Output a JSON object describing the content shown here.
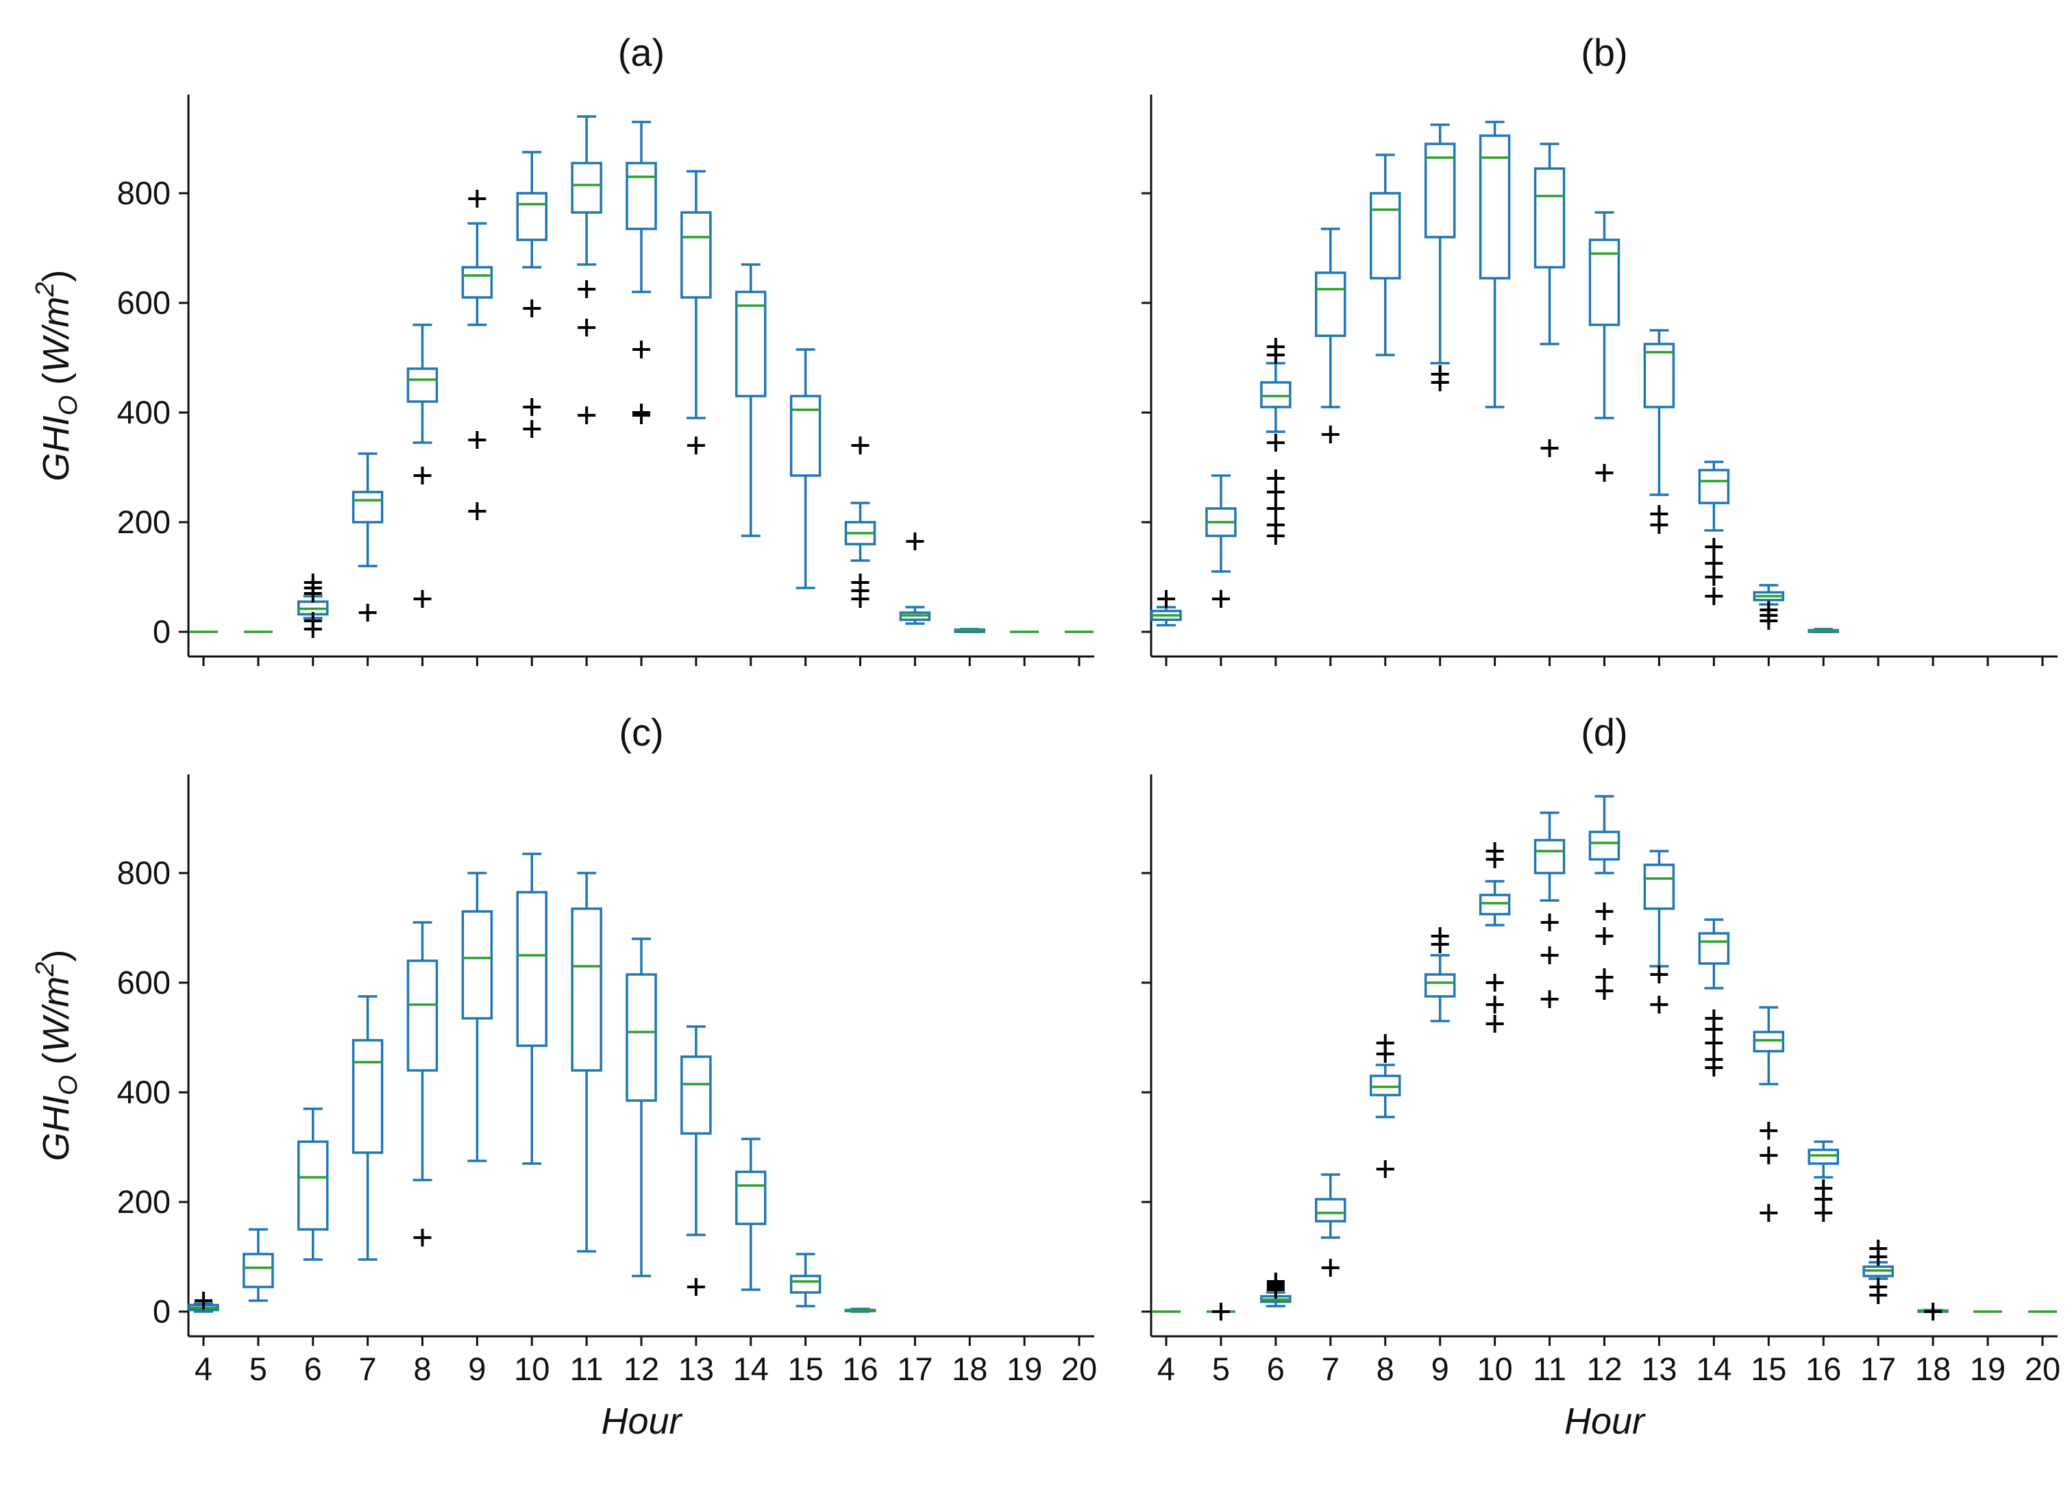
{
  "chart_data": [
    {
      "type": "boxplot",
      "title": "(a)",
      "xlabel": "",
      "ylabel_base": "GHI",
      "ylabel_sub": "O",
      "ylabel_units_open": " (",
      "ylabel_units": "W/m",
      "ylabel_sup": "2",
      "ylabel_units_close": ")",
      "ylim": [
        -45,
        980
      ],
      "yticks": [
        0,
        200,
        400,
        600,
        800
      ],
      "x": [
        4,
        5,
        6,
        7,
        8,
        9,
        10,
        11,
        12,
        13,
        14,
        15,
        16,
        17,
        18,
        19,
        20
      ],
      "boxes": [
        {
          "hour": 4,
          "whislo": 0,
          "q1": 0,
          "med": 0,
          "q3": 0,
          "whishi": 0,
          "fliers": []
        },
        {
          "hour": 5,
          "whislo": 0,
          "q1": 0,
          "med": 0,
          "q3": 0,
          "whishi": 0,
          "fliers": []
        },
        {
          "hour": 6,
          "whislo": 25,
          "q1": 32,
          "med": 42,
          "q3": 55,
          "whishi": 65,
          "fliers": [
            5,
            20,
            70,
            80,
            90
          ]
        },
        {
          "hour": 7,
          "whislo": 120,
          "q1": 200,
          "med": 240,
          "q3": 255,
          "whishi": 325,
          "fliers": [
            35
          ]
        },
        {
          "hour": 8,
          "whislo": 345,
          "q1": 420,
          "med": 460,
          "q3": 480,
          "whishi": 560,
          "fliers": [
            60,
            285
          ]
        },
        {
          "hour": 9,
          "whislo": 560,
          "q1": 610,
          "med": 650,
          "q3": 665,
          "whishi": 745,
          "fliers": [
            220,
            350,
            790
          ]
        },
        {
          "hour": 10,
          "whislo": 665,
          "q1": 715,
          "med": 780,
          "q3": 800,
          "whishi": 875,
          "fliers": [
            370,
            410,
            590
          ]
        },
        {
          "hour": 11,
          "whislo": 670,
          "q1": 765,
          "med": 815,
          "q3": 855,
          "whishi": 940,
          "fliers": [
            395,
            555,
            625
          ]
        },
        {
          "hour": 12,
          "whislo": 620,
          "q1": 735,
          "med": 830,
          "q3": 855,
          "whishi": 930,
          "fliers": [
            395,
            400,
            515
          ]
        },
        {
          "hour": 13,
          "whislo": 390,
          "q1": 610,
          "med": 720,
          "q3": 765,
          "whishi": 840,
          "fliers": [
            340
          ]
        },
        {
          "hour": 14,
          "whislo": 175,
          "q1": 430,
          "med": 595,
          "q3": 620,
          "whishi": 670,
          "fliers": []
        },
        {
          "hour": 15,
          "whislo": 80,
          "q1": 285,
          "med": 405,
          "q3": 430,
          "whishi": 515,
          "fliers": []
        },
        {
          "hour": 16,
          "whislo": 130,
          "q1": 160,
          "med": 180,
          "q3": 200,
          "whishi": 235,
          "fliers": [
            60,
            75,
            90,
            340
          ]
        },
        {
          "hour": 17,
          "whislo": 15,
          "q1": 22,
          "med": 30,
          "q3": 35,
          "whishi": 45,
          "fliers": [
            165
          ]
        },
        {
          "hour": 18,
          "whislo": 0,
          "q1": 0,
          "med": 3,
          "q3": 4,
          "whishi": 5,
          "fliers": []
        },
        {
          "hour": 19,
          "whislo": 0,
          "q1": 0,
          "med": 0,
          "q3": 0,
          "whishi": 0,
          "fliers": []
        },
        {
          "hour": 20,
          "whislo": 0,
          "q1": 0,
          "med": 0,
          "q3": 0,
          "whishi": 0,
          "fliers": []
        }
      ]
    },
    {
      "type": "boxplot",
      "title": "(b)",
      "xlabel": "",
      "ylim": [
        -45,
        980
      ],
      "yticks": [
        0,
        200,
        400,
        600,
        800
      ],
      "x": [
        4,
        5,
        6,
        7,
        8,
        9,
        10,
        11,
        12,
        13,
        14,
        15,
        16,
        17,
        18,
        19,
        20
      ],
      "boxes": [
        {
          "hour": 4,
          "whislo": 12,
          "q1": 22,
          "med": 30,
          "q3": 38,
          "whishi": 45,
          "fliers": [
            60
          ]
        },
        {
          "hour": 5,
          "whislo": 110,
          "q1": 175,
          "med": 200,
          "q3": 225,
          "whishi": 285,
          "fliers": [
            60
          ]
        },
        {
          "hour": 6,
          "whislo": 365,
          "q1": 410,
          "med": 430,
          "q3": 455,
          "whishi": 490,
          "fliers": [
            175,
            195,
            225,
            255,
            280,
            345,
            505,
            520
          ]
        },
        {
          "hour": 7,
          "whislo": 410,
          "q1": 540,
          "med": 625,
          "q3": 655,
          "whishi": 735,
          "fliers": [
            360
          ]
        },
        {
          "hour": 8,
          "whislo": 505,
          "q1": 645,
          "med": 770,
          "q3": 800,
          "whishi": 870,
          "fliers": []
        },
        {
          "hour": 9,
          "whislo": 490,
          "q1": 720,
          "med": 865,
          "q3": 890,
          "whishi": 925,
          "fliers": [
            455,
            470
          ]
        },
        {
          "hour": 10,
          "whislo": 410,
          "q1": 645,
          "med": 865,
          "q3": 905,
          "whishi": 930,
          "fliers": []
        },
        {
          "hour": 11,
          "whislo": 525,
          "q1": 665,
          "med": 795,
          "q3": 845,
          "whishi": 890,
          "fliers": [
            335
          ]
        },
        {
          "hour": 12,
          "whislo": 390,
          "q1": 560,
          "med": 690,
          "q3": 715,
          "whishi": 765,
          "fliers": [
            290
          ]
        },
        {
          "hour": 13,
          "whislo": 250,
          "q1": 410,
          "med": 510,
          "q3": 525,
          "whishi": 550,
          "fliers": [
            195,
            215
          ]
        },
        {
          "hour": 14,
          "whislo": 185,
          "q1": 235,
          "med": 275,
          "q3": 295,
          "whishi": 310,
          "fliers": [
            65,
            100,
            125,
            155
          ]
        },
        {
          "hour": 15,
          "whislo": 50,
          "q1": 58,
          "med": 65,
          "q3": 72,
          "whishi": 85,
          "fliers": [
            20,
            30,
            40
          ]
        },
        {
          "hour": 16,
          "whislo": 0,
          "q1": 0,
          "med": 2,
          "q3": 3,
          "whishi": 5,
          "fliers": []
        }
      ]
    },
    {
      "type": "boxplot",
      "title": "(c)",
      "xlabel": "Hour",
      "ylabel_base": "GHI",
      "ylabel_sub": "O",
      "ylabel_units_open": " (",
      "ylabel_units": "W/m",
      "ylabel_sup": "2",
      "ylabel_units_close": ")",
      "ylim": [
        -45,
        980
      ],
      "yticks": [
        0,
        200,
        400,
        600,
        800
      ],
      "x": [
        4,
        5,
        6,
        7,
        8,
        9,
        10,
        11,
        12,
        13,
        14,
        15,
        16,
        17,
        18,
        19,
        20
      ],
      "boxes": [
        {
          "hour": 4,
          "whislo": 0,
          "q1": 3,
          "med": 7,
          "q3": 12,
          "whishi": 15,
          "fliers": [
            20
          ]
        },
        {
          "hour": 5,
          "whislo": 20,
          "q1": 45,
          "med": 80,
          "q3": 105,
          "whishi": 150,
          "fliers": []
        },
        {
          "hour": 6,
          "whislo": 95,
          "q1": 150,
          "med": 245,
          "q3": 310,
          "whishi": 370,
          "fliers": []
        },
        {
          "hour": 7,
          "whislo": 95,
          "q1": 290,
          "med": 455,
          "q3": 495,
          "whishi": 575,
          "fliers": []
        },
        {
          "hour": 8,
          "whislo": 240,
          "q1": 440,
          "med": 560,
          "q3": 640,
          "whishi": 710,
          "fliers": [
            135
          ]
        },
        {
          "hour": 9,
          "whislo": 275,
          "q1": 535,
          "med": 645,
          "q3": 730,
          "whishi": 800,
          "fliers": []
        },
        {
          "hour": 10,
          "whislo": 270,
          "q1": 485,
          "med": 650,
          "q3": 765,
          "whishi": 835,
          "fliers": []
        },
        {
          "hour": 11,
          "whislo": 110,
          "q1": 440,
          "med": 630,
          "q3": 735,
          "whishi": 800,
          "fliers": []
        },
        {
          "hour": 12,
          "whislo": 65,
          "q1": 385,
          "med": 510,
          "q3": 615,
          "whishi": 680,
          "fliers": []
        },
        {
          "hour": 13,
          "whislo": 140,
          "q1": 325,
          "med": 415,
          "q3": 465,
          "whishi": 520,
          "fliers": [
            45
          ]
        },
        {
          "hour": 14,
          "whislo": 40,
          "q1": 160,
          "med": 230,
          "q3": 255,
          "whishi": 315,
          "fliers": []
        },
        {
          "hour": 15,
          "whislo": 10,
          "q1": 35,
          "med": 55,
          "q3": 65,
          "whishi": 105,
          "fliers": []
        },
        {
          "hour": 16,
          "whislo": 0,
          "q1": 1,
          "med": 2,
          "q3": 3,
          "whishi": 5,
          "fliers": []
        }
      ]
    },
    {
      "type": "boxplot",
      "title": "(d)",
      "xlabel": "Hour",
      "ylim": [
        -45,
        980
      ],
      "yticks": [
        0,
        200,
        400,
        600,
        800
      ],
      "x": [
        4,
        5,
        6,
        7,
        8,
        9,
        10,
        11,
        12,
        13,
        14,
        15,
        16,
        17,
        18,
        19,
        20
      ],
      "boxes": [
        {
          "hour": 4,
          "whislo": 0,
          "q1": 0,
          "med": 0,
          "q3": 0,
          "whishi": 0,
          "fliers": []
        },
        {
          "hour": 5,
          "whislo": 0,
          "q1": 0,
          "med": 0,
          "q3": 0,
          "whishi": 0,
          "fliers": [
            0
          ]
        },
        {
          "hour": 6,
          "whislo": 10,
          "q1": 18,
          "med": 22,
          "q3": 28,
          "whishi": 35,
          "fliers": [
            40,
            45,
            50,
            55
          ]
        },
        {
          "hour": 7,
          "whislo": 135,
          "q1": 165,
          "med": 180,
          "q3": 205,
          "whishi": 250,
          "fliers": [
            80
          ]
        },
        {
          "hour": 8,
          "whislo": 355,
          "q1": 395,
          "med": 410,
          "q3": 430,
          "whishi": 450,
          "fliers": [
            260,
            470,
            490
          ]
        },
        {
          "hour": 9,
          "whislo": 530,
          "q1": 575,
          "med": 600,
          "q3": 615,
          "whishi": 650,
          "fliers": [
            670,
            685
          ]
        },
        {
          "hour": 10,
          "whislo": 705,
          "q1": 725,
          "med": 745,
          "q3": 760,
          "whishi": 785,
          "fliers": [
            525,
            560,
            600,
            825,
            840
          ]
        },
        {
          "hour": 11,
          "whislo": 750,
          "q1": 800,
          "med": 840,
          "q3": 860,
          "whishi": 910,
          "fliers": [
            570,
            650,
            710
          ]
        },
        {
          "hour": 12,
          "whislo": 800,
          "q1": 825,
          "med": 855,
          "q3": 875,
          "whishi": 940,
          "fliers": [
            585,
            610,
            685,
            730
          ]
        },
        {
          "hour": 13,
          "whislo": 630,
          "q1": 735,
          "med": 790,
          "q3": 815,
          "whishi": 840,
          "fliers": [
            560,
            615
          ]
        },
        {
          "hour": 14,
          "whislo": 590,
          "q1": 635,
          "med": 675,
          "q3": 690,
          "whishi": 715,
          "fliers": [
            445,
            460,
            490,
            515,
            535
          ]
        },
        {
          "hour": 15,
          "whislo": 415,
          "q1": 475,
          "med": 495,
          "q3": 510,
          "whishi": 555,
          "fliers": [
            180,
            285,
            330
          ]
        },
        {
          "hour": 16,
          "whislo": 245,
          "q1": 270,
          "med": 285,
          "q3": 295,
          "whishi": 310,
          "fliers": [
            180,
            205,
            225
          ]
        },
        {
          "hour": 17,
          "whislo": 60,
          "q1": 65,
          "med": 75,
          "q3": 82,
          "whishi": 90,
          "fliers": [
            30,
            45,
            100,
            115
          ]
        },
        {
          "hour": 18,
          "whislo": 0,
          "q1": 0,
          "med": 1,
          "q3": 2,
          "whishi": 3,
          "fliers": [
            0
          ]
        },
        {
          "hour": 19,
          "whislo": 0,
          "q1": 0,
          "med": 0,
          "q3": 0,
          "whishi": 0,
          "fliers": []
        },
        {
          "hour": 20,
          "whislo": 0,
          "q1": 0,
          "med": 0,
          "q3": 0,
          "whishi": 0,
          "fliers": []
        }
      ]
    }
  ],
  "colors": {
    "box": "#1f77b4",
    "median": "#2ca02c",
    "flier": "#000000",
    "axis": "#111111"
  }
}
